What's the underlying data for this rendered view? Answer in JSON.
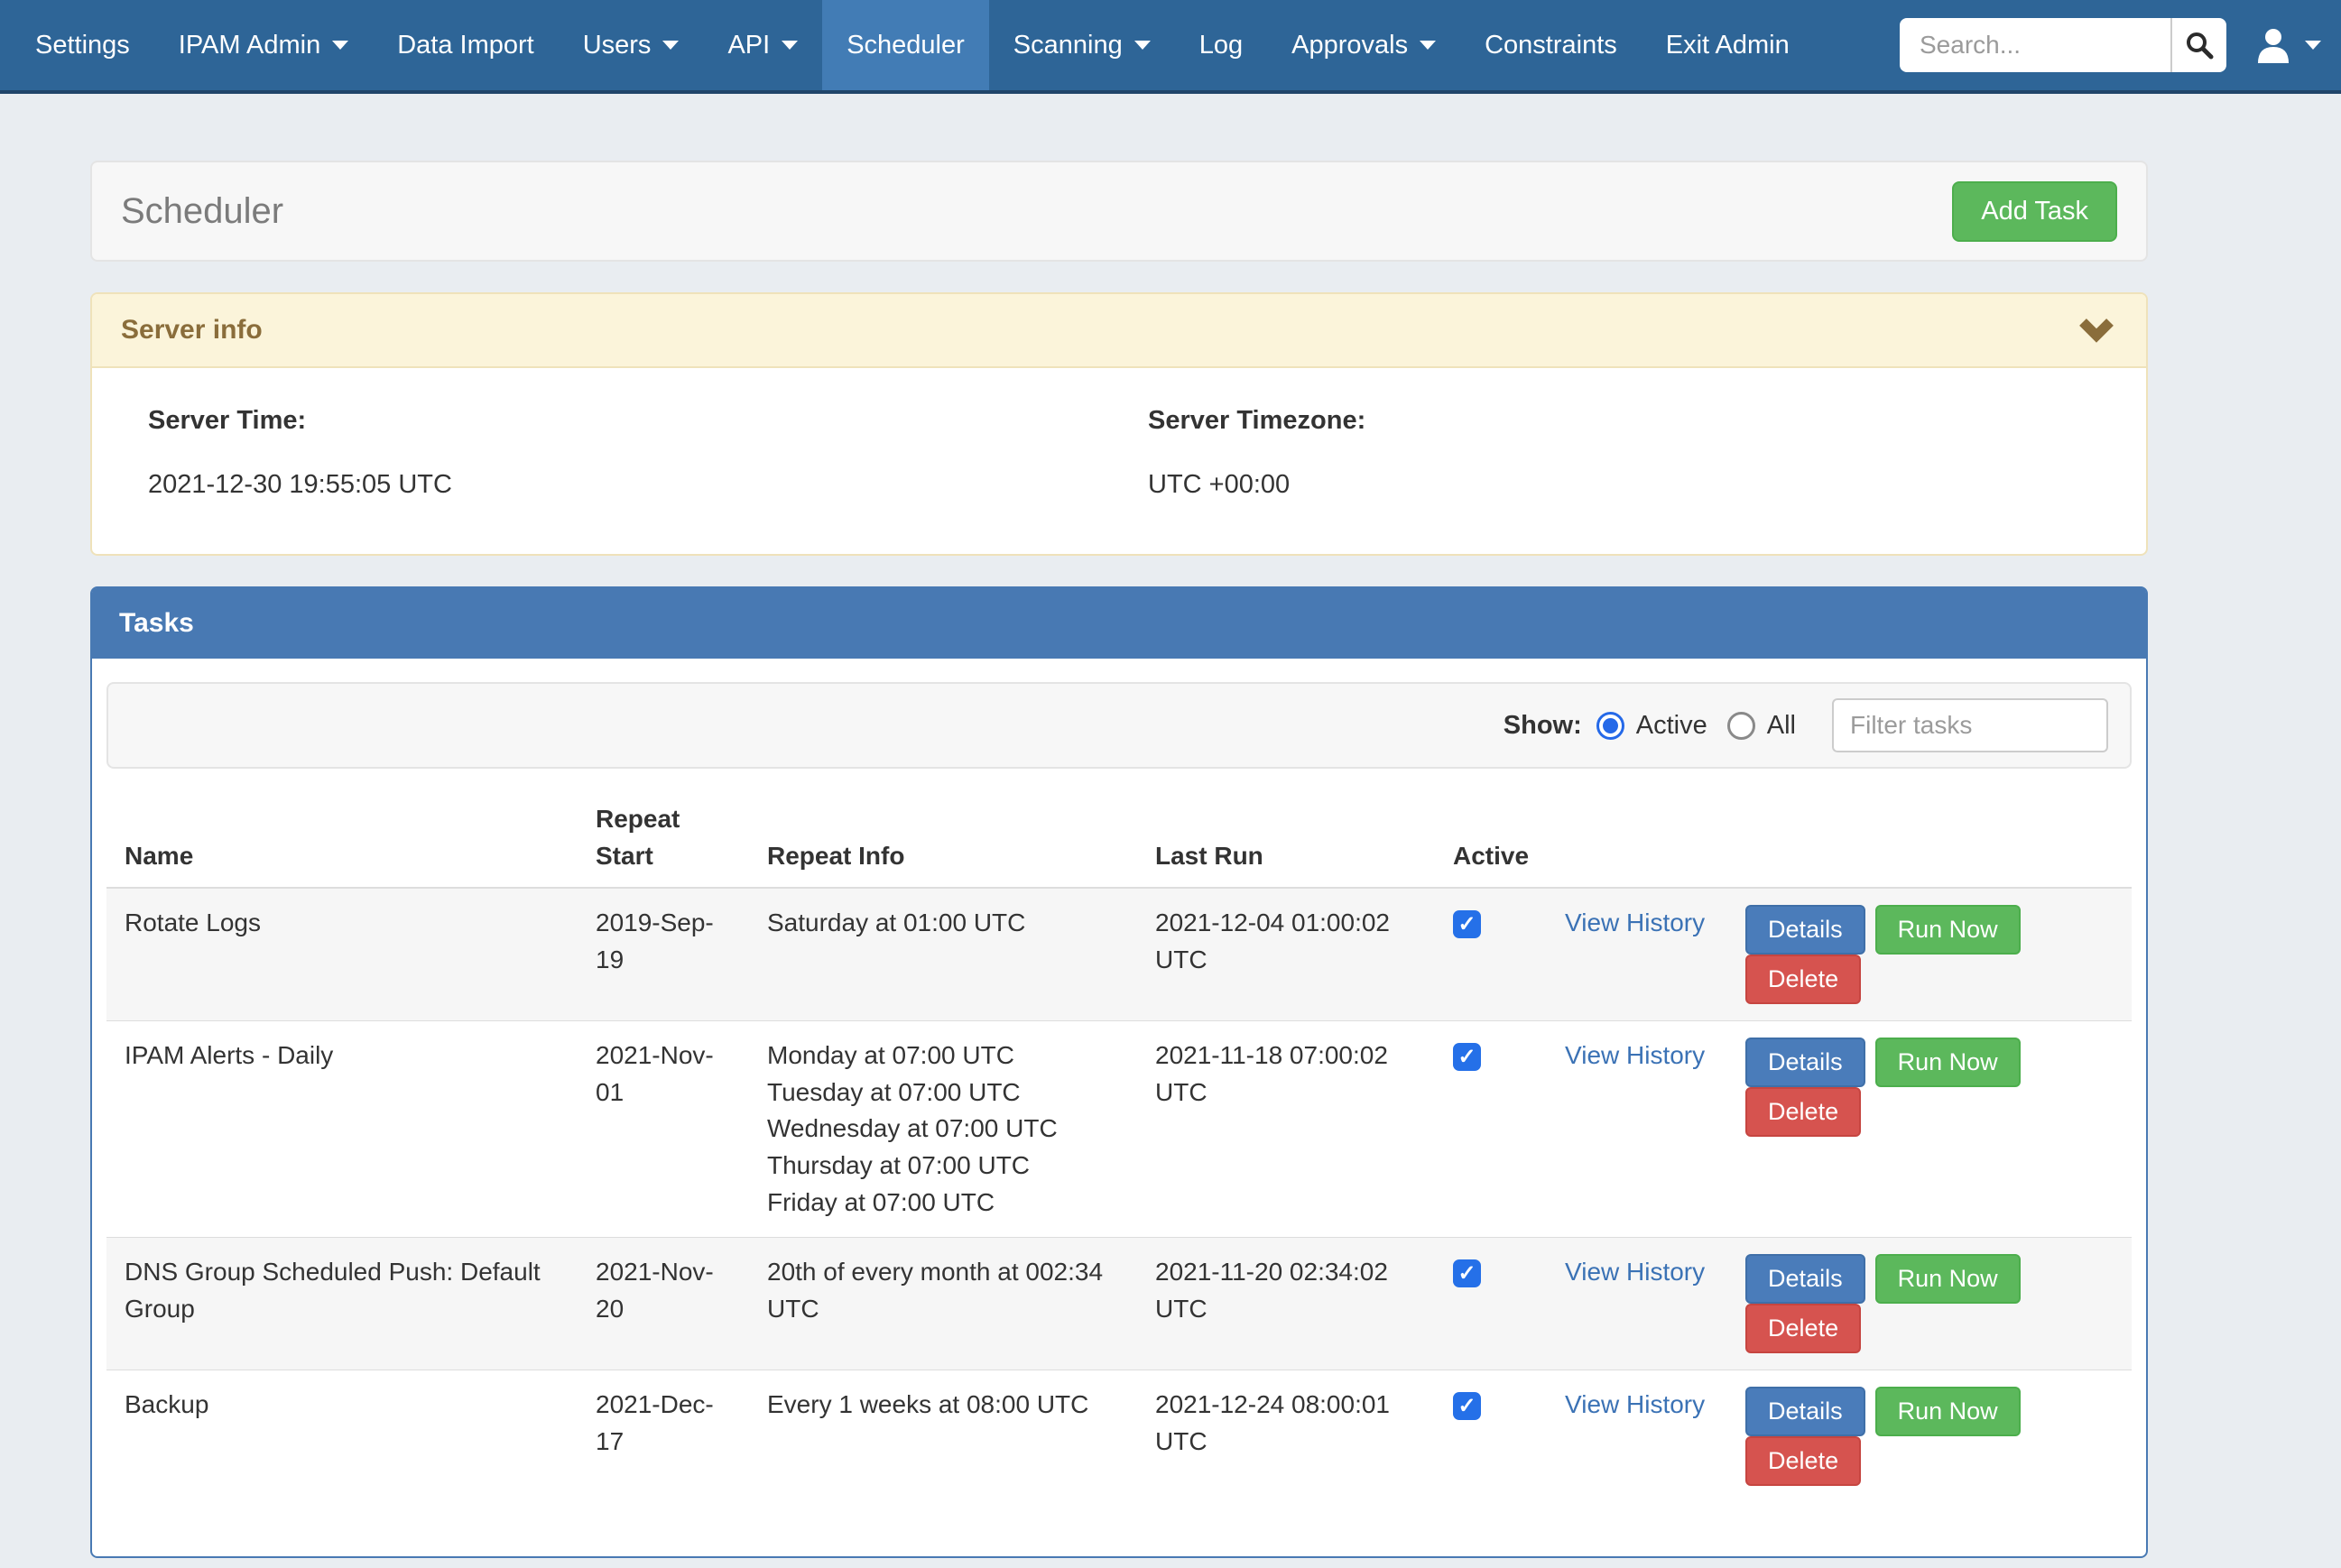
{
  "navbar": {
    "items": [
      {
        "label": "Settings",
        "dropdown": false,
        "active": false
      },
      {
        "label": "IPAM Admin",
        "dropdown": true,
        "active": false
      },
      {
        "label": "Data Import",
        "dropdown": false,
        "active": false
      },
      {
        "label": "Users",
        "dropdown": true,
        "active": false
      },
      {
        "label": "API",
        "dropdown": true,
        "active": false
      },
      {
        "label": "Scheduler",
        "dropdown": false,
        "active": true
      },
      {
        "label": "Scanning",
        "dropdown": true,
        "active": false
      },
      {
        "label": "Log",
        "dropdown": false,
        "active": false
      },
      {
        "label": "Approvals",
        "dropdown": true,
        "active": false
      },
      {
        "label": "Constraints",
        "dropdown": false,
        "active": false
      },
      {
        "label": "Exit Admin",
        "dropdown": false,
        "active": false
      }
    ],
    "search_placeholder": "Search..."
  },
  "page": {
    "title": "Scheduler",
    "add_task_label": "Add Task"
  },
  "server_info": {
    "title": "Server info",
    "server_time_label": "Server Time:",
    "server_time": "2021-12-30 19:55:05 UTC",
    "server_timezone_label": "Server Timezone:",
    "server_timezone": "UTC +00:00"
  },
  "tasks": {
    "title": "Tasks",
    "show_label": "Show:",
    "radio_active_label": "Active",
    "radio_all_label": "All",
    "radio_selected": "Active",
    "filter_placeholder": "Filter tasks",
    "columns": [
      "Name",
      "Repeat Start",
      "Repeat Info",
      "Last Run",
      "Active"
    ],
    "view_history_label": "View History",
    "buttons": {
      "details": "Details",
      "run_now": "Run Now",
      "delete": "Delete"
    },
    "rows": [
      {
        "name": "Rotate Logs",
        "repeat_start": "2019-Sep-19",
        "repeat_info": [
          "Saturday at 01:00 UTC"
        ],
        "last_run": "2021-12-04 01:00:02 UTC",
        "active": true
      },
      {
        "name": "IPAM Alerts - Daily",
        "repeat_start": "2021-Nov-01",
        "repeat_info": [
          "Monday at 07:00 UTC",
          "Tuesday at 07:00 UTC",
          "Wednesday at 07:00 UTC",
          "Thursday at 07:00 UTC",
          "Friday at 07:00 UTC"
        ],
        "last_run": "2021-11-18 07:00:02 UTC",
        "active": true
      },
      {
        "name": "DNS Group Scheduled Push: Default Group",
        "repeat_start": "2021-Nov-20",
        "repeat_info": [
          "20th of every month at 002:34 UTC"
        ],
        "last_run": "2021-11-20 02:34:02 UTC",
        "active": true
      },
      {
        "name": "Backup",
        "repeat_start": "2021-Dec-17",
        "repeat_info": [
          "Every 1 weeks at 08:00 UTC"
        ],
        "last_run": "2021-12-24 08:00:01 UTC",
        "active": true
      }
    ]
  },
  "colors": {
    "navbar": "#2e6597",
    "navbar_active": "#427cb5",
    "panel_primary": "#4879b3",
    "warning_bg": "#fbf4da",
    "warning_text": "#8a6d3b",
    "green": "#5cb85c",
    "red": "#d6534f",
    "blue_button": "#4a7cba",
    "checkbox_blue": "#2570e8",
    "link": "#3b72b5",
    "page_bg": "#e9edf1"
  }
}
